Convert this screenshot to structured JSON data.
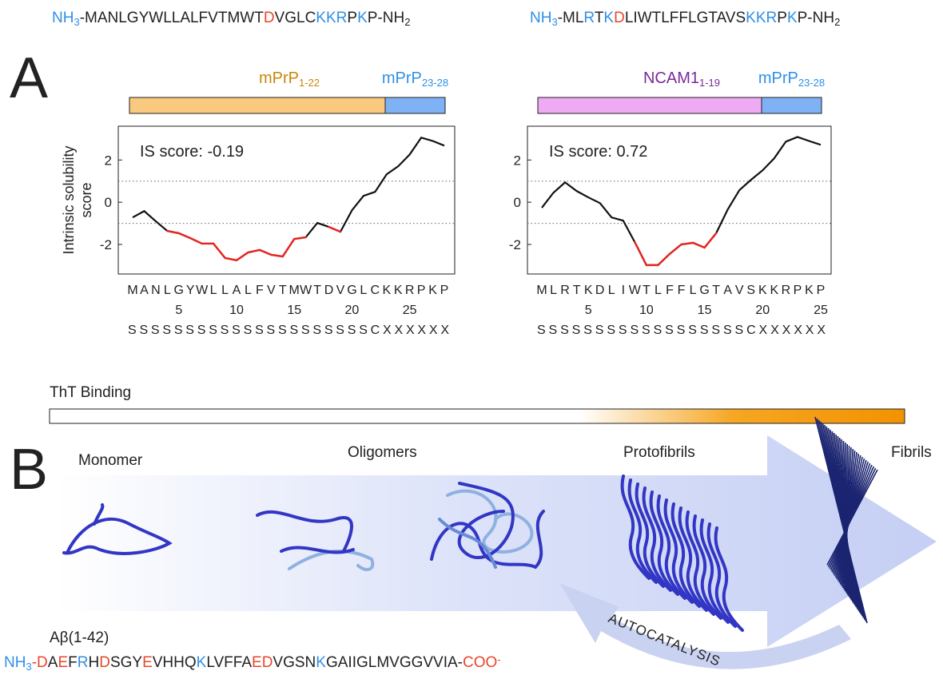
{
  "chart_data": [
    {
      "type": "line",
      "sequence": [
        {
          "text": "NH",
          "color": "#2f8fe6"
        },
        {
          "text": "3",
          "color": "#2f8fe6",
          "sub": true
        },
        {
          "text": "-MANLGYWLLALFVTMWT",
          "color": "#222222"
        },
        {
          "text": "D",
          "color": "#e8472a"
        },
        {
          "text": "VGLC",
          "color": "#222222"
        },
        {
          "text": "KKR",
          "color": "#2f8fe6"
        },
        {
          "text": "P",
          "color": "#222222"
        },
        {
          "text": "K",
          "color": "#2f8fe6"
        },
        {
          "text": "P-NH",
          "color": "#222222"
        },
        {
          "text": "2",
          "color": "#222222",
          "sub": true
        }
      ],
      "domains": [
        {
          "label": "mPrP",
          "sub": "1-22",
          "color": "#f8c97e",
          "text_color": "#c8860a"
        },
        {
          "label": "mPrP",
          "sub": "23-28",
          "color": "#7fb1f5",
          "text_color": "#2f8fe6"
        }
      ],
      "annotation": "IS score: -0.19",
      "y_label": [
        "Intrinsic solubility",
        "score"
      ],
      "categories": [
        "M",
        "A",
        "N",
        "L",
        "G",
        "Y",
        "W",
        "L",
        "L",
        "A",
        "L",
        "F",
        "V",
        "T",
        "M",
        "W",
        "T",
        "D",
        "V",
        "G",
        "L",
        "C",
        "K",
        "K",
        "R",
        "P",
        "K",
        "P"
      ],
      "structure": "SSSSSSSSSSSSSSSSSSSSSCXXXXXX",
      "values": [
        -0.72,
        -0.42,
        -0.9,
        -1.36,
        -1.47,
        -1.7,
        -1.96,
        -1.96,
        -2.64,
        -2.75,
        -2.38,
        -2.26,
        -2.49,
        -2.57,
        -1.74,
        -1.66,
        -0.98,
        -1.17,
        -1.4,
        -0.38,
        0.3,
        0.49,
        1.32,
        1.7,
        2.26,
        3.06,
        2.9,
        2.68
      ],
      "color": "#111111",
      "low_color": "#e8231f",
      "threshold": -1,
      "ylim": [
        -3.4,
        3.6
      ],
      "yticks": [
        -2,
        0,
        2
      ],
      "xticks": [
        5,
        10,
        15,
        20,
        25
      ],
      "reference_lines": [
        -1,
        1
      ]
    },
    {
      "type": "line",
      "sequence": [
        {
          "text": "NH",
          "color": "#2f8fe6"
        },
        {
          "text": "3",
          "color": "#2f8fe6",
          "sub": true
        },
        {
          "text": "-ML",
          "color": "#222222"
        },
        {
          "text": "R",
          "color": "#2f8fe6"
        },
        {
          "text": "T",
          "color": "#222222"
        },
        {
          "text": "K",
          "color": "#2f8fe6"
        },
        {
          "text": "D",
          "color": "#e8472a"
        },
        {
          "text": "LIWTLFFLGTAVS",
          "color": "#222222"
        },
        {
          "text": "KKR",
          "color": "#2f8fe6"
        },
        {
          "text": "P",
          "color": "#222222"
        },
        {
          "text": "K",
          "color": "#2f8fe6"
        },
        {
          "text": "P-NH",
          "color": "#222222"
        },
        {
          "text": "2",
          "color": "#222222",
          "sub": true
        }
      ],
      "domains": [
        {
          "label": "NCAM1",
          "sub": "1-19",
          "color": "#eeaaf3",
          "text_color": "#7a2a9a"
        },
        {
          "label": "mPrP",
          "sub": "23-28",
          "color": "#7fb1f5",
          "text_color": "#2f8fe6"
        }
      ],
      "annotation": "IS score: 0.72",
      "categories": [
        "M",
        "L",
        "R",
        "T",
        "K",
        "D",
        "L",
        "I",
        "W",
        "T",
        "L",
        "F",
        "F",
        "L",
        "G",
        "T",
        "A",
        "V",
        "S",
        "K",
        "K",
        "R",
        "P",
        "K",
        "P"
      ],
      "structure": "SSSSSSSSSSSSSSSSSSCXXXXXX",
      "values": [
        -0.26,
        0.45,
        0.94,
        0.53,
        0.23,
        -0.04,
        -0.72,
        -0.87,
        -1.89,
        -2.98,
        -2.98,
        -2.45,
        -2.0,
        -1.92,
        -2.15,
        -1.47,
        -0.34,
        0.57,
        1.06,
        1.51,
        2.08,
        2.87,
        3.09,
        2.9,
        2.72
      ],
      "color": "#111111",
      "low_color": "#e8231f",
      "threshold": -1,
      "ylim": [
        -3.4,
        3.6
      ],
      "yticks": [
        -2,
        0,
        2
      ],
      "xticks": [
        5,
        10,
        15,
        20,
        25
      ],
      "reference_lines": [
        -1,
        1
      ]
    }
  ],
  "figure": {
    "panel_a": "A",
    "panel_b": "B",
    "tht_label": "ThT Binding",
    "stages": [
      "Monomer",
      "Oligomers",
      "Protofibrils",
      "Fibrils"
    ],
    "autocatalysis": "AUTOCATALYSIS",
    "peptide_label": "Aβ(1-42)",
    "peptide_sequence": [
      {
        "text": "NH",
        "color": "#2f8fe6"
      },
      {
        "text": "3",
        "color": "#2f8fe6",
        "sub": true
      },
      {
        "text": "-D",
        "color": "#e8472a"
      },
      {
        "text": "A",
        "color": "#222222"
      },
      {
        "text": "E",
        "color": "#e8472a"
      },
      {
        "text": "F",
        "color": "#222222"
      },
      {
        "text": "R",
        "color": "#2f8fe6"
      },
      {
        "text": "H",
        "color": "#222222"
      },
      {
        "text": "D",
        "color": "#e8472a"
      },
      {
        "text": "SGY",
        "color": "#222222"
      },
      {
        "text": "E",
        "color": "#e8472a"
      },
      {
        "text": "VHHQ",
        "color": "#222222"
      },
      {
        "text": "K",
        "color": "#2f8fe6"
      },
      {
        "text": "LVFFA",
        "color": "#222222"
      },
      {
        "text": "ED",
        "color": "#e8472a"
      },
      {
        "text": "VGSN",
        "color": "#222222"
      },
      {
        "text": "K",
        "color": "#2f8fe6"
      },
      {
        "text": "GAIIGLMVGGVVIA-",
        "color": "#222222"
      },
      {
        "text": "COO",
        "color": "#e8472a"
      },
      {
        "text": "-",
        "color": "#e8472a",
        "sup": true
      }
    ]
  }
}
